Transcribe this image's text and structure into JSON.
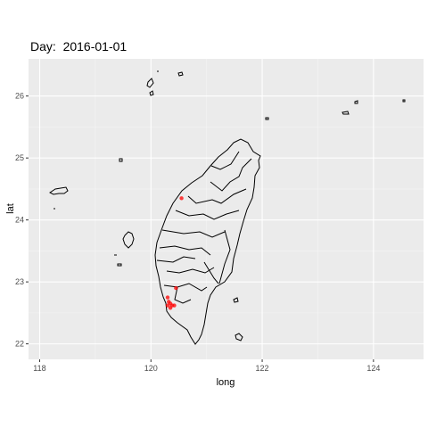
{
  "title": "Day:  2016-01-01",
  "chart_data": {
    "type": "scatter",
    "title": "Day:  2016-01-01",
    "xlabel": "long",
    "ylabel": "lat",
    "xlim": [
      117.8,
      124.9
    ],
    "ylim": [
      21.75,
      26.6
    ],
    "x_ticks": [
      "118",
      "120",
      "122",
      "124"
    ],
    "y_ticks": [
      "22",
      "23",
      "24",
      "25",
      "26"
    ],
    "grid": true,
    "panel_background": "#ebebeb",
    "points_color": "#ff0000",
    "points": [
      [
        120.55,
        24.35
      ],
      [
        120.3,
        22.75
      ],
      [
        120.32,
        22.68
      ],
      [
        120.35,
        22.65
      ],
      [
        120.38,
        22.62
      ],
      [
        120.3,
        22.62
      ],
      [
        120.35,
        22.58
      ],
      [
        120.42,
        22.62
      ],
      [
        120.45,
        22.9
      ]
    ]
  }
}
